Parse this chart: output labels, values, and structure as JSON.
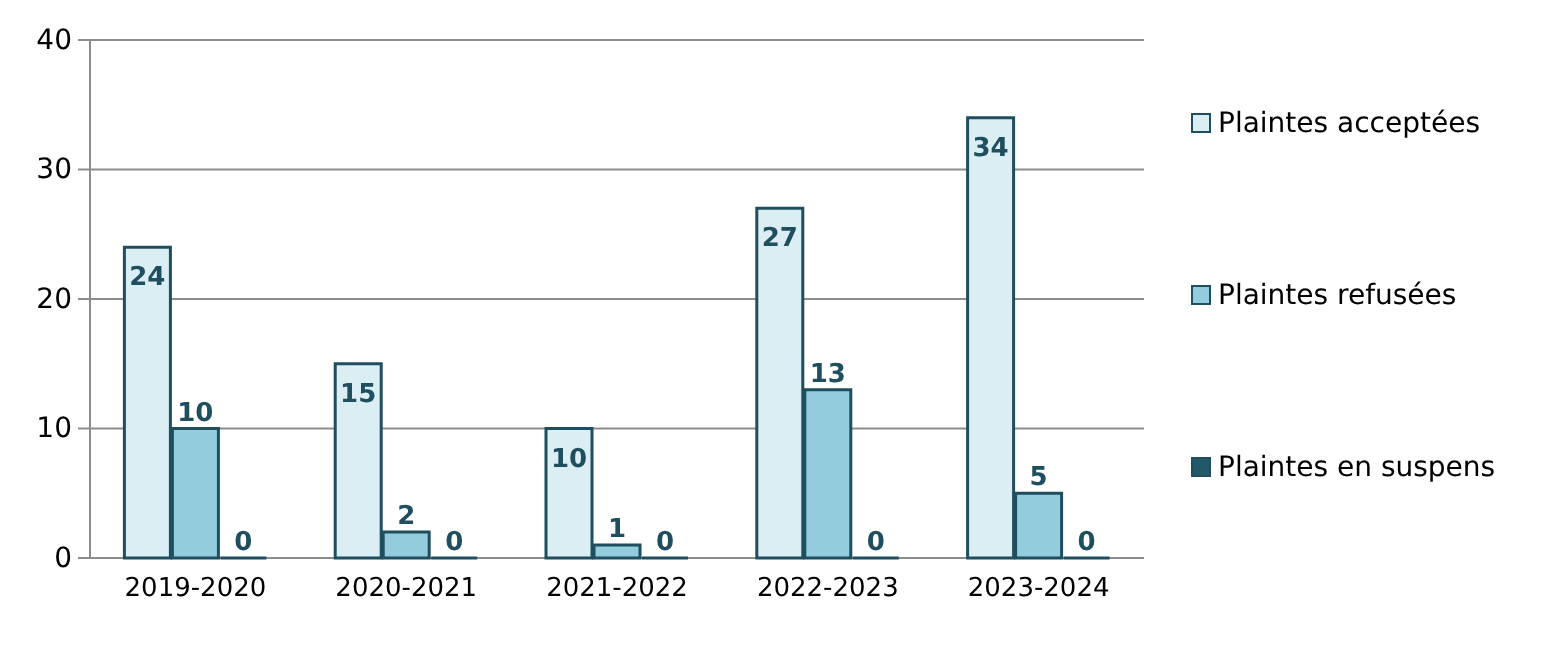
{
  "chart_data": {
    "type": "bar",
    "categories": [
      "2019-2020",
      "2020-2021",
      "2021-2022",
      "2022-2023",
      "2023-2024"
    ],
    "series": [
      {
        "name": "Plaintes acceptées",
        "color": "#dbeef4",
        "values": [
          24,
          15,
          10,
          27,
          34
        ]
      },
      {
        "name": "Plaintes refusées",
        "color": "#93cddd",
        "values": [
          10,
          2,
          1,
          13,
          5
        ]
      },
      {
        "name": "Plaintes en suspens",
        "color": "#215968",
        "values": [
          0,
          0,
          0,
          0,
          0
        ]
      }
    ],
    "ylim": [
      0,
      40
    ],
    "yticks": [
      0,
      10,
      20,
      30,
      40
    ],
    "grid": "y",
    "legend": "right",
    "data_labels": true
  }
}
